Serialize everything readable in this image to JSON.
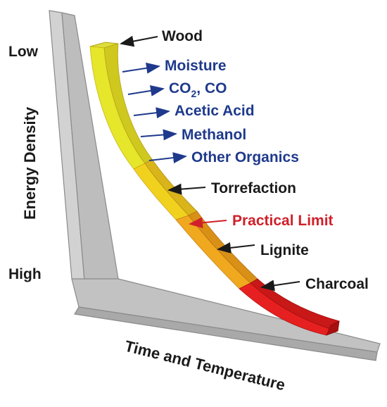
{
  "axes": {
    "y_title": "Energy Density",
    "y_low": "Low",
    "y_high": "High",
    "x_title": "Time and Temperature"
  },
  "colors": {
    "black": "#1a1a1a",
    "blue": "#1f3a8c",
    "red": "#d0202a",
    "panel": "#c4c4c4",
    "panel_edge": "#9a9a9a"
  },
  "labels": {
    "wood": "Wood",
    "moisture": "Moisture",
    "co2_co": "CO",
    "co2_sub": "2",
    "co2_rest": ", CO",
    "acetic_acid": "Acetic Acid",
    "methanol": "Methanol",
    "other_organics": "Other Organics",
    "torrefaction": "Torrefaction",
    "practical_limit": "Practical Limit",
    "lignite": "Lignite",
    "charcoal": "Charcoal"
  }
}
